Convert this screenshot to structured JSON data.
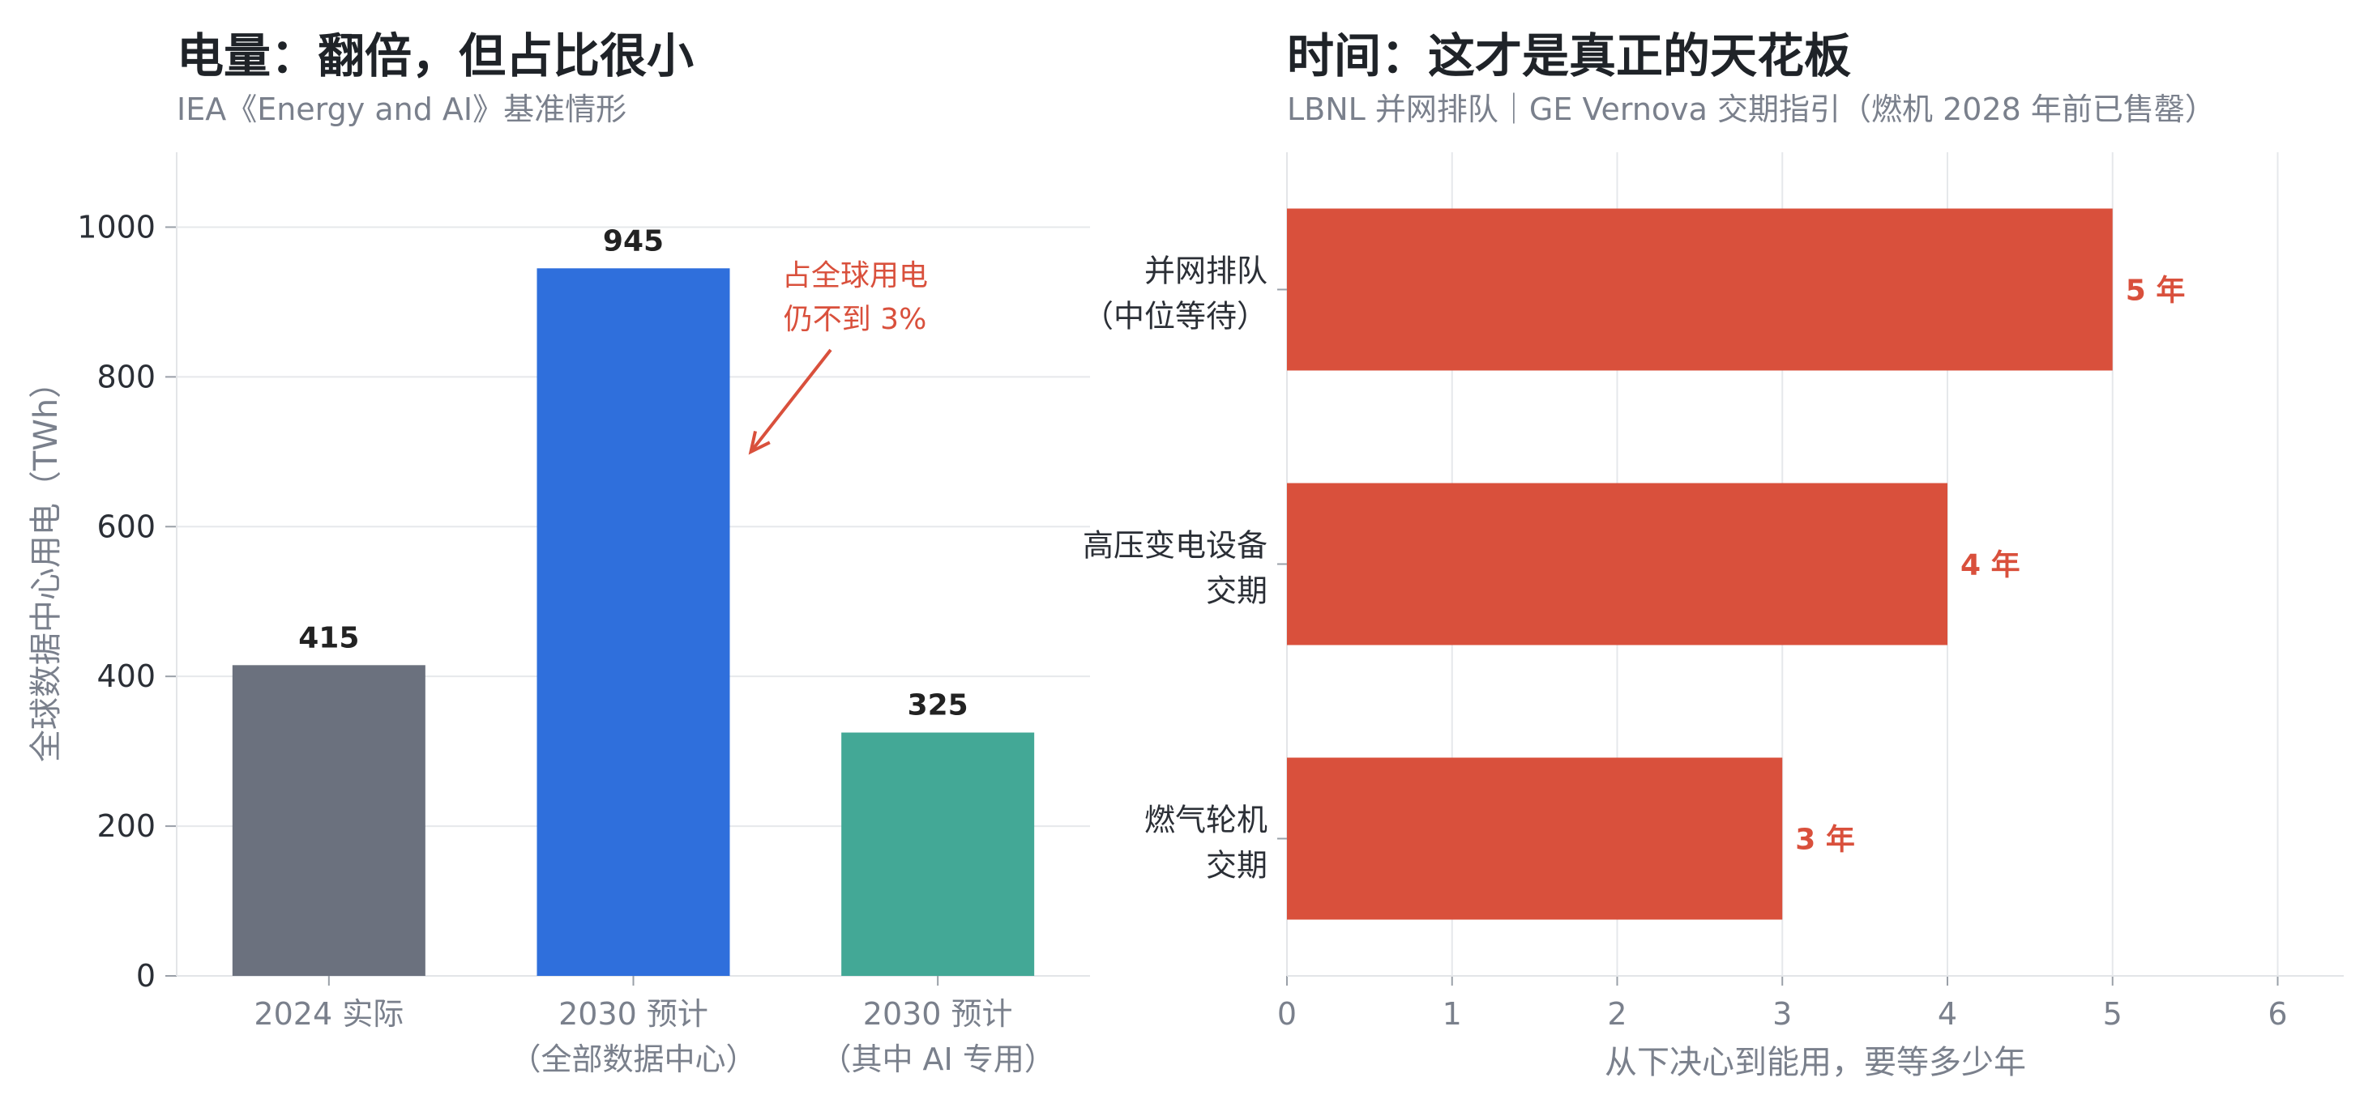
{
  "chart_data": [
    {
      "type": "bar",
      "title": "电量：翻倍，但占比很小",
      "subtitle": "IEA《Energy and AI》基准情形",
      "xlabel": "",
      "ylabel": "全球数据中心用电（TWh）",
      "ylim": [
        0,
        1100
      ],
      "yticks": [
        0,
        200,
        400,
        600,
        800,
        1000
      ],
      "grid": "horizontal",
      "categories": [
        [
          "2024 实际"
        ],
        [
          "2030 预计",
          "（全部数据中心）"
        ],
        [
          "2030 预计",
          "（其中 AI 专用）"
        ]
      ],
      "values": [
        415,
        945,
        325
      ],
      "data_labels": [
        "415",
        "945",
        "325"
      ],
      "colors": [
        "#6b717e",
        "#2f6fdc",
        "#43a896"
      ],
      "annotation": {
        "lines": [
          "占全球用电",
          "仍不到 3%"
        ],
        "color": "#d9503c",
        "points_to_value": 700
      }
    },
    {
      "type": "bar",
      "orientation": "horizontal",
      "title": "时间：这才是真正的天花板",
      "subtitle": "LBNL 并网排队｜GE Vernova 交期指引（燃机 2028 年前已售罄）",
      "xlabel": "从下决心到能用，要等多少年",
      "ylabel": "",
      "xlim": [
        0,
        6.4
      ],
      "xticks": [
        0,
        1,
        2,
        3,
        4,
        5,
        6
      ],
      "grid": "vertical",
      "categories": [
        [
          "并网排队",
          "（中位等待）"
        ],
        [
          "高压变电设备",
          "交期"
        ],
        [
          "燃气轮机",
          "交期"
        ]
      ],
      "values": [
        5,
        4,
        3
      ],
      "data_labels": [
        "5 年",
        "4 年",
        "3 年"
      ],
      "colors": [
        "#d9503c",
        "#d9503c",
        "#d9503c"
      ]
    }
  ]
}
